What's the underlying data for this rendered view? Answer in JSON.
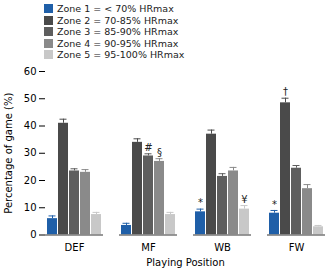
{
  "chart_data": {
    "type": "bar",
    "x_label": "Playing Position",
    "y_label": "Percentage of game (%)",
    "categories": [
      "DEF",
      "MF",
      "WB",
      "FW"
    ],
    "ylim": [
      0,
      60
    ],
    "yticks": [
      0,
      10,
      20,
      30,
      40,
      50,
      60
    ],
    "legend": "top",
    "series": [
      {
        "name": "Zone 1 = < 70% HRmax",
        "color": "#1f5fa8",
        "values": [
          6,
          3.5,
          8.5,
          8
        ],
        "errors": [
          1,
          0.8,
          1,
          1
        ],
        "annotations": [
          null,
          null,
          "*",
          "*"
        ]
      },
      {
        "name": "Zone 2 = 70-85% HRmax",
        "color": "#4a4a4a",
        "values": [
          41,
          34,
          37,
          48.5
        ],
        "errors": [
          1.5,
          1.3,
          1.5,
          1.7
        ],
        "annotations": [
          null,
          null,
          null,
          "†"
        ]
      },
      {
        "name": "Zone 3 = 85-90% HRmax",
        "color": "#5e5e5e",
        "values": [
          23.5,
          29,
          21.5,
          24.5
        ],
        "errors": [
          0.8,
          0.8,
          1,
          1
        ],
        "annotations": [
          null,
          "#",
          null,
          null
        ]
      },
      {
        "name": "Zone 4 = 90-95% HRmax",
        "color": "#8a8a8a",
        "values": [
          23,
          27,
          23.5,
          17
        ],
        "errors": [
          1,
          1,
          1.3,
          1.5
        ],
        "annotations": [
          null,
          "§",
          null,
          null
        ]
      },
      {
        "name": "Zone 5 = 95-100% HRmax",
        "color": "#c8c8c8",
        "values": [
          7.5,
          7.5,
          9.5,
          3
        ],
        "errors": [
          0.8,
          0.8,
          1.3,
          0.5
        ],
        "annotations": [
          null,
          null,
          "¥",
          null
        ]
      }
    ]
  }
}
